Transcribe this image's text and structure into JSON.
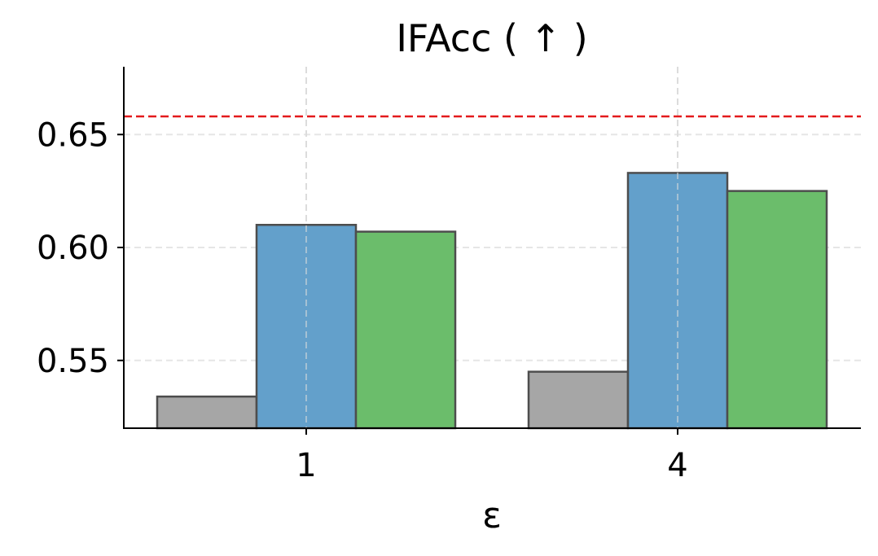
{
  "chart_data": {
    "type": "bar",
    "title": "IFAcc ( ↑ )",
    "xlabel": "ε",
    "ylabel": "",
    "categories": [
      "1",
      "4"
    ],
    "ylim": [
      0.52,
      0.68
    ],
    "yticks": [
      "0.55",
      "0.60",
      "0.65"
    ],
    "ytick_values": [
      0.55,
      0.6,
      0.65
    ],
    "grid": true,
    "legend": false,
    "series": [
      {
        "color": "#a6a6a6",
        "values": [
          0.534,
          0.545
        ]
      },
      {
        "color": "#63a0cb",
        "values": [
          0.61,
          0.633
        ]
      },
      {
        "color": "#6bbd6b",
        "values": [
          0.607,
          0.625
        ]
      }
    ],
    "reference_line": {
      "value": 0.658,
      "color": "#e31a1c",
      "style": "dashed"
    }
  }
}
